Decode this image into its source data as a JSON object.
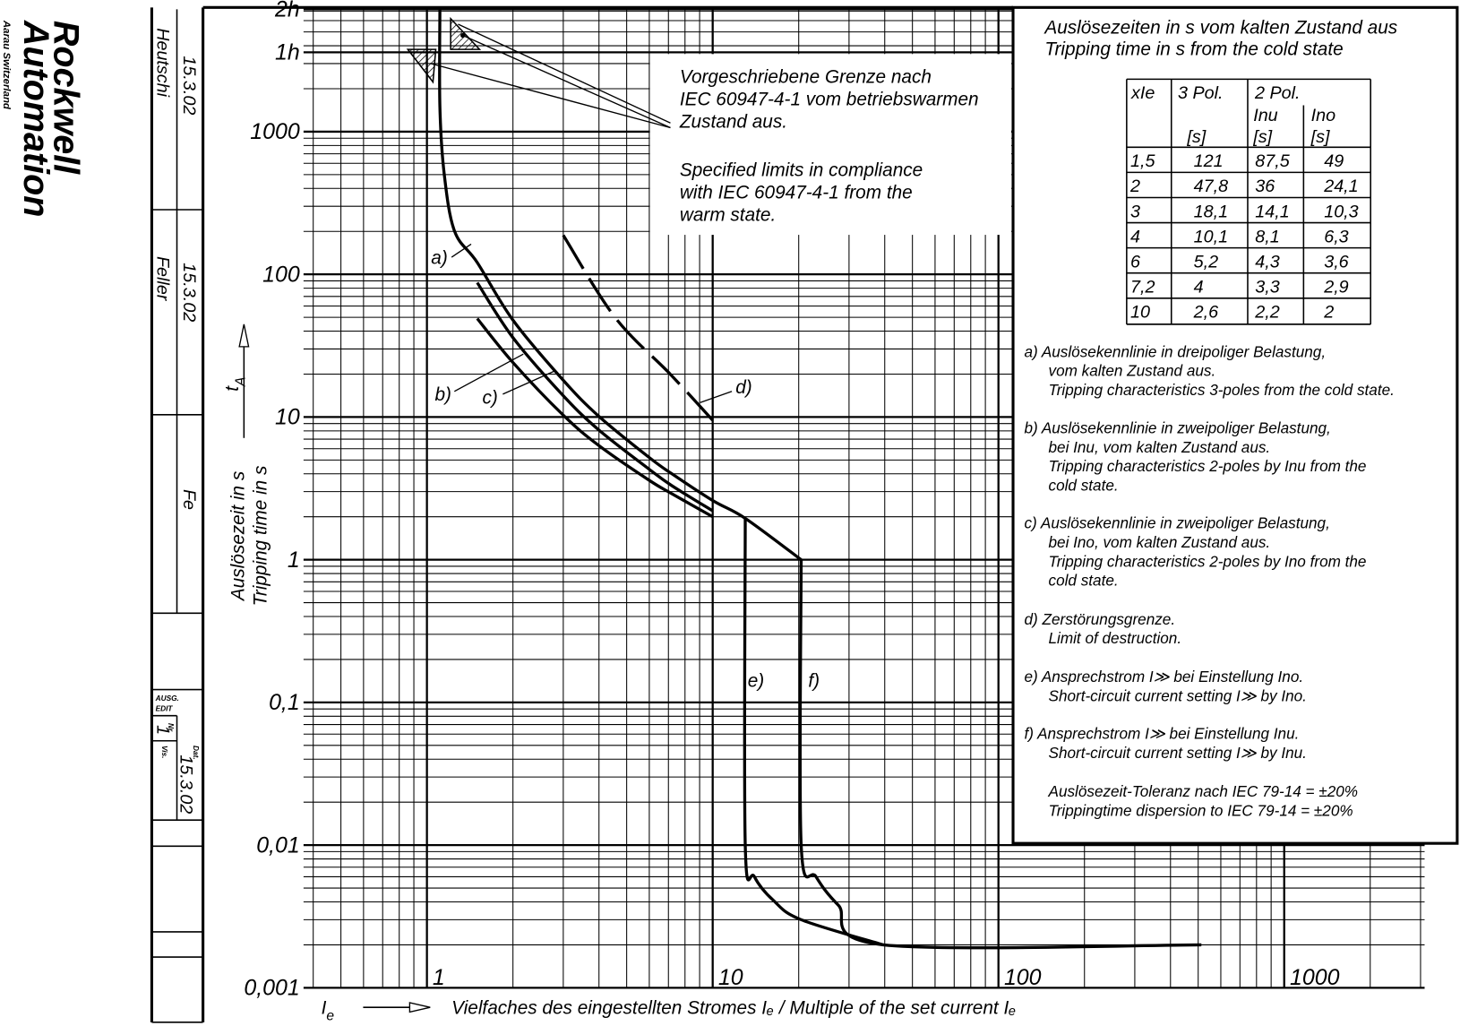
{
  "chart_data": {
    "type": "line",
    "xscale": "log",
    "yscale": "log",
    "grid": true,
    "minor_grid": true,
    "xlim": [
      0.37,
      3100
    ],
    "ylim": [
      0.001,
      7200
    ],
    "xticks": [
      1,
      10,
      100,
      1000
    ],
    "yticks": [
      {
        "value": 0.001,
        "label": "0,001"
      },
      {
        "value": 0.01,
        "label": "0,01"
      },
      {
        "value": 0.1,
        "label": "0,1"
      },
      1,
      10,
      100,
      1000,
      {
        "value": 3600,
        "label": "1h"
      },
      {
        "value": 7200,
        "label": "2h"
      }
    ],
    "x_symbol": {
      "main": "I",
      "sub": "e"
    },
    "x_label": "Vielfaches des eingestellten Stromes  Iₑ / Multiple of the set current Iₑ",
    "y_symbol": {
      "main": "t",
      "sub": "A"
    },
    "y_label": [
      "Auslösezeit in s",
      "Tripping time in s"
    ],
    "annotation": {
      "de": [
        "Vorgeschriebene Grenze nach",
        "IEC 60947-4-1 vom betriebswarmen",
        "Zustand aus."
      ],
      "en": [
        "Specified limits in compliance",
        "with IEC 60947-4-1 from the",
        "warm state."
      ]
    },
    "series": [
      {
        "name": "a)",
        "color": "#000",
        "x": [
          1.11,
          1.11,
          1.15,
          1.25,
          1.5,
          2,
          3,
          4,
          6,
          7.2,
          10,
          13,
          20.4
        ],
        "values": [
          7200,
          1500,
          500,
          200,
          121,
          47.8,
          18.1,
          10.1,
          5.2,
          4,
          2.6,
          1.95,
          1
        ]
      },
      {
        "name": "b)",
        "color": "#000",
        "x": [
          1.5,
          2,
          3,
          4,
          6,
          7.2,
          10
        ],
        "values": [
          87.5,
          36,
          14.1,
          8.1,
          4.3,
          3.3,
          2.2
        ]
      },
      {
        "name": "c)",
        "color": "#000",
        "x": [
          1.5,
          2,
          3,
          4,
          6,
          7.2,
          10
        ],
        "values": [
          49,
          24.1,
          10.3,
          6.3,
          3.6,
          2.9,
          2
        ]
      },
      {
        "name": "d)",
        "color": "#000",
        "dash": true,
        "x": [
          3,
          4.55,
          7.1,
          10
        ],
        "values": [
          188,
          50,
          20,
          9.5
        ]
      },
      {
        "name": "e)",
        "color": "#000",
        "x": [
          13,
          13,
          14,
          16.3,
          20.4,
          39.5
        ],
        "values": [
          1.95,
          0.01,
          0.006,
          0.0041,
          0.003,
          0.002
        ]
      },
      {
        "name": "f)",
        "color": "#000",
        "x": [
          20.4,
          20.4,
          23,
          27.5,
          39.5,
          513
        ],
        "values": [
          1,
          0.01,
          0.006,
          0.0038,
          0.002,
          0.002
        ]
      }
    ]
  },
  "table": {
    "title": [
      "Auslösezeiten in s vom kalten Zustand aus",
      "Tripping time in s from the cold state"
    ],
    "header": [
      "xIe",
      "3 Pol.",
      "2 Pol."
    ],
    "subheader": [
      "Inu",
      "Ino"
    ],
    "units": [
      "[s]",
      "[s]",
      "[s]"
    ],
    "rows": [
      [
        "1,5",
        "121",
        "87,5",
        "49"
      ],
      [
        "2",
        "47,8",
        "36",
        "24,1"
      ],
      [
        "3",
        "18,1",
        "14,1",
        "10,3"
      ],
      [
        "4",
        "10,1",
        "8,1",
        "6,3"
      ],
      [
        "6",
        "5,2",
        "4,3",
        "3,6"
      ],
      [
        "7,2",
        "4",
        "3,3",
        "2,9"
      ],
      [
        "10",
        "2,6",
        "2,2",
        "2"
      ]
    ]
  },
  "notes": [
    [
      "a) Auslösekennlinie in dreipoliger Belastung,",
      "vom kalten Zustand aus.",
      "Tripping characteristics 3-poles from the cold state."
    ],
    [
      "b) Auslösekennlinie in zweipoliger Belastung,",
      "bei Inu, vom kalten Zustand aus.",
      "Tripping characteristics 2-poles by Inu from the",
      "cold state."
    ],
    [
      "c) Auslösekennlinie in zweipoliger Belastung,",
      "bei Ino, vom kalten Zustand aus.",
      "Tripping characteristics 2-poles by Ino from the",
      "cold state."
    ],
    [
      "d) Zerstörungsgrenze.",
      "Limit of destruction."
    ],
    [
      "e) Ansprechstrom I≫ bei Einstellung Ino.",
      "Short-circuit current setting I≫ by Ino."
    ],
    [
      "f) Ansprechstrom I≫ bei Einstellung Inu.",
      "Short-circuit current setting I≫ by Inu."
    ],
    [
      "Auslösezeit-Toleranz nach IEC 79-14 = ±20%",
      "Trippingtime dispersion to IEC 79-14 = ±20%"
    ]
  ],
  "title_block": {
    "company": [
      "Rockwell",
      "Automation"
    ],
    "location": "Aarau Switzerland",
    "drawn_date": "15.3.02",
    "drawn_by": "Heutschi",
    "checked_date": "15.3.02",
    "checked_by": "Feller",
    "approved": "Fe",
    "edit_label": [
      "AUSG.",
      "EDIT"
    ],
    "edit_no": "1",
    "no_label": "Nr.",
    "date_label": "Dat.",
    "edit_date": "15.3.02",
    "vis_label": "Vis."
  }
}
